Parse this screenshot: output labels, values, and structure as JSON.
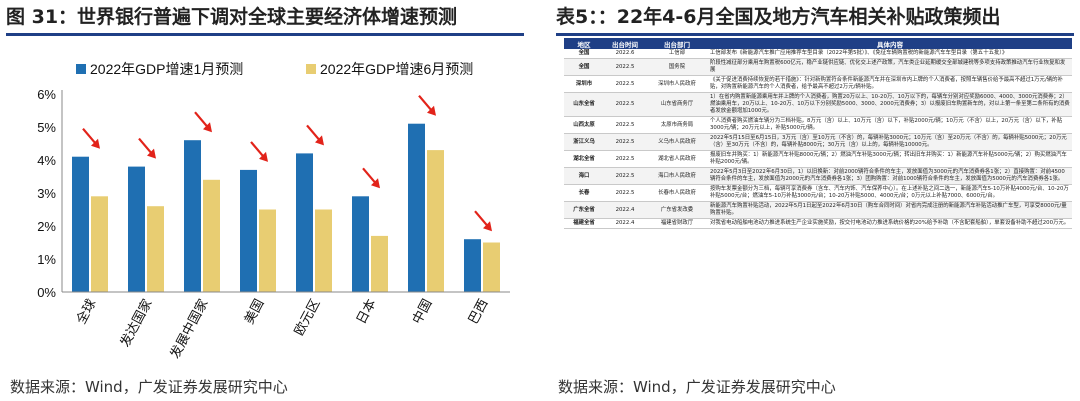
{
  "left": {
    "title": "图 31：世界银行普遍下调对全球主要经济体增速预测",
    "source": "数据来源：Wind，广发证券发展研究中心"
  },
  "right": {
    "title": "表5：：22年4-6月全国及地方汽车相关补贴政策频出",
    "source": "数据来源：Wind，广发证券发展研究中心"
  },
  "colors": {
    "jan": "#1f6fb2",
    "jun": "#e8cd72",
    "arrow": "#e2231a",
    "header": "#1f3f86"
  },
  "chart_data": {
    "type": "bar",
    "categories": [
      "全球",
      "发达国家",
      "发展中国家",
      "美国",
      "欧元区",
      "日本",
      "中国",
      "巴西"
    ],
    "series": [
      {
        "name": "2022年GDP增速1月预测",
        "values": [
          4.1,
          3.8,
          4.6,
          3.7,
          4.2,
          2.9,
          5.1,
          1.6
        ]
      },
      {
        "name": "2022年GDP增速6月预测",
        "values": [
          2.9,
          2.6,
          3.4,
          2.5,
          2.5,
          1.7,
          4.3,
          1.5
        ]
      }
    ],
    "ylim": [
      0,
      6
    ],
    "yticks": [
      "0%",
      "1%",
      "2%",
      "3%",
      "4%",
      "5%",
      "6%"
    ],
    "legend": "top",
    "grid": false
  },
  "table": {
    "headers": [
      "地区",
      "出台时间",
      "出台部门",
      "具体内容"
    ],
    "rows": [
      {
        "region": "全国",
        "date": "2022.6",
        "dept": "工信部",
        "content": "工信部发布《新能源汽车推广应用推荐车型目录（2022年第5批）》、《免征车辆购置税的新能源汽车车型目录（第五十五批）》"
      },
      {
        "region": "全国",
        "date": "2022.5",
        "dept": "国务院",
        "content": "阶段性减征部分乘用车购置税600亿元，稳产业链供应链、优化交上述产政策，汽车类企业延期缓交全部城建税等多项支持政策推动汽车行业恢复和发展",
        "red": true
      },
      {
        "region": "深圳市",
        "date": "2022.5",
        "dept": "深圳市人民政府",
        "content": "《关于促进消费持续恢复的若干措施》：针对新购置符合条件新能源汽车并在深圳市内上牌的个人消费者，按照车辆售价给予最高不超过1万元/辆的补贴，对购置新能源汽车的个人消费者，给予最高不超过2万元/辆补贴。"
      },
      {
        "region": "山东全省",
        "date": "2022.5",
        "dept": "山东省商务厅",
        "content": "1）在省内购置新能源乘用车并上牌的个人消费者，购置20万以上、10-20万、10万以下的，每辆车分别对应奖励6000、4000、3000元消费券；2）燃油乘用车，20万以上、10-20万、10万以下分别奖励5000、3000、2000元消费券；3）以报废旧车购置新车的，对以上第一条至第二条所有的消费者发放金额增加1000元。"
      },
      {
        "region": "山西太原",
        "date": "2022.5",
        "dept": "太原市商务局",
        "content": "个人消费者购买燃油车辆分为三档补贴，8万元（含）以上、10万元（含）以下，补贴2000元/辆；10万元（不含）以上，20万元（含）以下，补贴3000元/辆；20万元以上，补贴5000元/辆。"
      },
      {
        "region": "浙江义乌",
        "date": "2022.5",
        "dept": "义乌市人民政府",
        "content": "2022年5月15日至6月15日，3万元（含）至10万元（不含）的，每辆补贴3000元；10万元（含）至20万元（不含）的，每辆补贴5000元；20万元（含）至30万元（不含）的，每辆补贴8000元；30万元（含）以上的，每辆补贴10000元。"
      },
      {
        "region": "湖北全省",
        "date": "2022.5",
        "dept": "湖北省人民政府",
        "content": "报废旧车并购买：1）新能源汽车补贴8000元/辆；2）燃油汽车补贴3000元/辆；转出旧车并购买：1）新能源汽车补贴5000元/辆；2）购买燃油汽车补贴2000元/辆。"
      },
      {
        "region": "海口",
        "date": "2022.5",
        "dept": "海口市人民政府",
        "content": "2022年5月3日至2022年6月30日，1）以旧换新：对前2000辆符合条件的车主，发放面值为3000元的汽车消费券各1张；2）直接购置：对前4500辆符合条件的车主，发放面值为2000元的汽车消费券各1张；3）团购购置：对前1000辆符合条件的车主，发放面值为5000元的汽车消费券各1张。"
      },
      {
        "region": "长春",
        "date": "2022.5",
        "dept": "长春市人民政府",
        "content": "按购车发票金额分为三档，每辆可享消费券（含车、汽车内饰、汽车保养中心）。在上述补贴之间二选一，新能源汽车5-10万补贴4000元/台、10-20万补贴5000元/台；燃油车5-10万补贴3000元/台；10-20万补贴5000、4000元/台；0万元以上补贴7000、6000元/台。"
      },
      {
        "region": "广东全省",
        "date": "2022.4",
        "dept": "广东省发改委",
        "content": "新能源汽车购置补贴活动，2022年5月1日起至2022年6月30日（购车合同时间）对省内完成注册的新能源汽车补贴活动推广车型，可享受8000元/量购置补贴。"
      },
      {
        "region": "福建全省",
        "date": "2022.4",
        "dept": "福建省财政厅",
        "content": "对我省电动船舶电池动力推进系统生产企业实施奖励，按交付电池动力推进系统价格的20%给予补助（不含配套船舶），单套设备补助不超过200万元。"
      }
    ]
  }
}
